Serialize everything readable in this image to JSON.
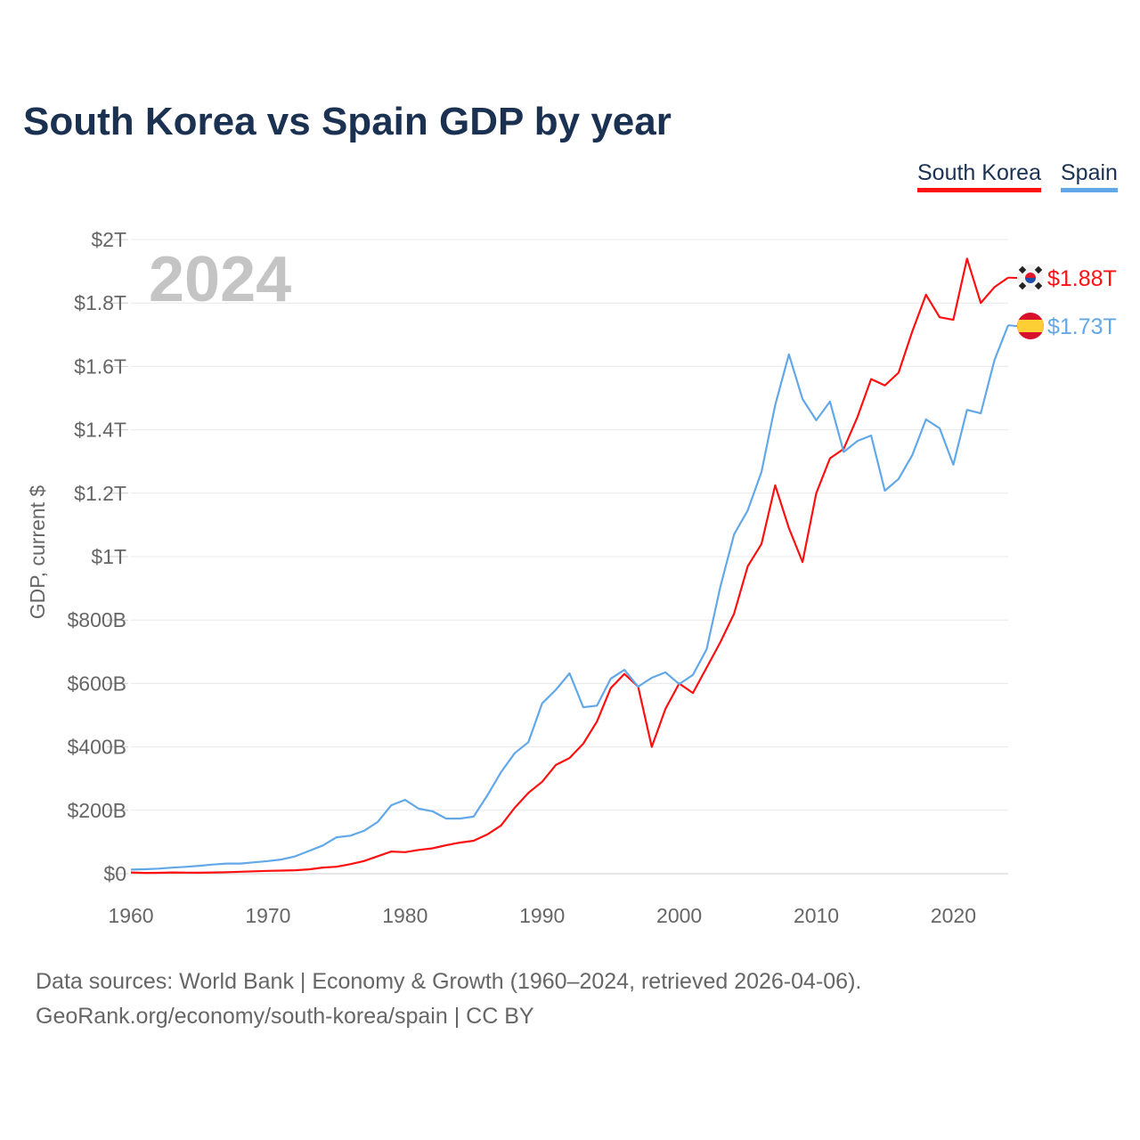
{
  "title": "South Korea vs Spain GDP by year",
  "legend": [
    "South Korea",
    "Spain"
  ],
  "source_line1": "Data sources: World Bank | Economy & Growth (1960–2024, retrieved 2026-04-06).",
  "source_line2": "GeoRank.org/economy/south-korea/spain | CC BY",
  "chart_data": {
    "type": "line",
    "title": "South Korea vs Spain GDP by year",
    "xlabel": "",
    "ylabel": "GDP, current $",
    "year_label": "2024",
    "xlim": [
      1960,
      2024
    ],
    "ylim": [
      0,
      2000
    ],
    "y_unit": "billion USD",
    "grid": true,
    "legend_position": "top-right",
    "x_ticks": [
      1960,
      1970,
      1980,
      1990,
      2000,
      2010,
      2020
    ],
    "x_tick_labels": [
      "1960",
      "1970",
      "1980",
      "1990",
      "2000",
      "2010",
      "2020"
    ],
    "y_ticks": [
      0,
      200,
      400,
      600,
      800,
      1000,
      1200,
      1400,
      1600,
      1800,
      2000
    ],
    "y_tick_labels": [
      "$0",
      "$200B",
      "$400B",
      "$600B",
      "$800B",
      "$1T",
      "$1.2T",
      "$1.4T",
      "$1.6T",
      "$1.8T",
      "$2T"
    ],
    "x": [
      1960,
      1961,
      1962,
      1963,
      1964,
      1965,
      1966,
      1967,
      1968,
      1969,
      1970,
      1971,
      1972,
      1973,
      1974,
      1975,
      1976,
      1977,
      1978,
      1979,
      1980,
      1981,
      1982,
      1983,
      1984,
      1985,
      1986,
      1987,
      1988,
      1989,
      1990,
      1991,
      1992,
      1993,
      1994,
      1995,
      1996,
      1997,
      1998,
      1999,
      2000,
      2001,
      2002,
      2003,
      2004,
      2005,
      2006,
      2007,
      2008,
      2009,
      2010,
      2011,
      2012,
      2013,
      2014,
      2015,
      2016,
      2017,
      2018,
      2019,
      2020,
      2021,
      2022,
      2023,
      2024
    ],
    "series": [
      {
        "name": "South Korea",
        "color": "#ff1010",
        "end_label": "$1.88T",
        "flag": "south-korea",
        "values": [
          4,
          2.4,
          2.8,
          3.9,
          3.5,
          3.1,
          3.8,
          4.7,
          6.1,
          7.7,
          9,
          9.9,
          10.9,
          13.9,
          19.5,
          21.8,
          30,
          40,
          55,
          70,
          68,
          75,
          80,
          90,
          98,
          104,
          124,
          152,
          208,
          255,
          290,
          343,
          365,
          410,
          480,
          585,
          630,
          590,
          400,
          520,
          600,
          570,
          650,
          730,
          820,
          970,
          1040,
          1225,
          1090,
          983,
          1200,
          1310,
          1340,
          1440,
          1560,
          1540,
          1580,
          1710,
          1826,
          1755,
          1747,
          1940,
          1800,
          1850,
          1880
        ]
      },
      {
        "name": "Spain",
        "color": "#62a8e8",
        "end_label": "$1.73T",
        "flag": "spain",
        "values": [
          13,
          14,
          16,
          19,
          21.5,
          25,
          29,
          32,
          32,
          36,
          40,
          45,
          55,
          72,
          89,
          115,
          120,
          135,
          163,
          216,
          233,
          205,
          197,
          174,
          174,
          180,
          247,
          320,
          380,
          415,
          537,
          580,
          632,
          525,
          530,
          615,
          643,
          590,
          618,
          635,
          598,
          627,
          708,
          905,
          1070,
          1146,
          1267,
          1478,
          1638,
          1497,
          1430,
          1489,
          1330,
          1365,
          1382,
          1208,
          1245,
          1320,
          1433,
          1405,
          1290,
          1463,
          1452,
          1620,
          1730
        ]
      }
    ]
  }
}
